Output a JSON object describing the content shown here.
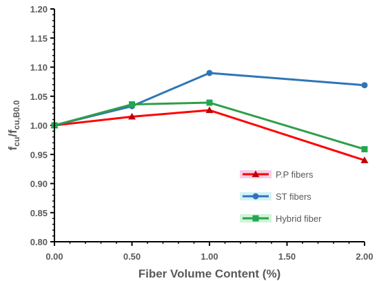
{
  "chart_data": {
    "type": "line",
    "xlabel": "Fiber Volume Content (%)",
    "ylabel": {
      "main": "f",
      "sub1": "cu",
      "sep": "/f",
      "sub2": "cu,B0.0"
    },
    "xlim": [
      0,
      2
    ],
    "ylim": [
      0.8,
      1.2
    ],
    "x_ticks": [
      "0.00",
      "0.50",
      "1.00",
      "1.50",
      "2.00"
    ],
    "y_ticks": [
      "0.80",
      "0.85",
      "0.90",
      "0.95",
      "1.00",
      "1.05",
      "1.10",
      "1.15",
      "1.20"
    ],
    "x": [
      0,
      0.5,
      1.0,
      2.0
    ],
    "grid": false,
    "legend_position": "bottom-right",
    "series": [
      {
        "name": "P.P fibers",
        "values": [
          1.0,
          1.015,
          1.026,
          0.94
        ],
        "color": "#ff0000",
        "marker": "triangle",
        "marker_color": "#c00000",
        "highlight": "#f5c6e6"
      },
      {
        "name": "ST fibers",
        "values": [
          1.0,
          1.033,
          1.09,
          1.069
        ],
        "color": "#2e75b6",
        "marker": "circle",
        "marker_color": "#2e75b6",
        "highlight": "#cdeff7"
      },
      {
        "name": "Hybrid fiber",
        "values": [
          1.0,
          1.036,
          1.039,
          0.959
        ],
        "color": "#2e9e48",
        "marker": "square",
        "marker_color": "#21a84f",
        "highlight": "#c8f2d6"
      }
    ]
  }
}
